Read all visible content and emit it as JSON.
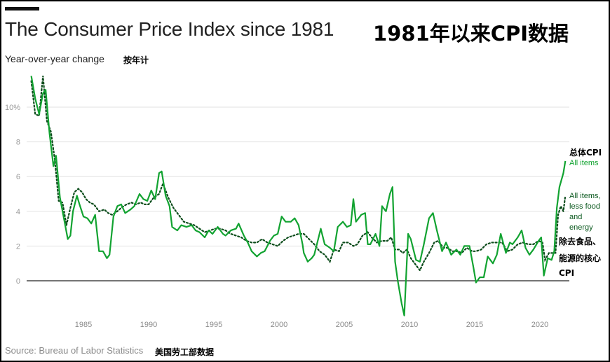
{
  "header": {
    "title_en": "The Consumer Price Index since 1981",
    "title_zh": "1981年以来CPI数据",
    "subtitle_en": "Year-over-year change",
    "subtitle_zh": "按年计"
  },
  "labels": {
    "all_items_zh": "总体CPI",
    "all_items_en": "All items",
    "core_en_lines": [
      "All items,",
      "less food",
      "and",
      "energy"
    ],
    "core_zh_line1": "除去食品、",
    "core_zh_line2": "能源的核心",
    "core_zh_line3": "CPI"
  },
  "footer": {
    "source_en": "Source: Bureau of Labor Statistics",
    "source_zh": "美国劳工部数据"
  },
  "colors": {
    "all_items": "#12a331",
    "core": "#0d4d1c",
    "grid": "#e2e2e2",
    "zero_line": "#222222"
  },
  "chart_data": {
    "type": "line",
    "title": "The Consumer Price Index since 1981",
    "subtitle": "Year-over-year change",
    "xlabel": "",
    "ylabel": "Year-over-year change (%)",
    "x_ticks": [
      1985,
      1990,
      1995,
      2000,
      2005,
      2010,
      2015,
      2020
    ],
    "y_ticks": [
      0,
      2,
      4,
      6,
      8,
      10
    ],
    "y_tick_labels": [
      "0",
      "2",
      "4",
      "6",
      "8",
      "10%"
    ],
    "xlim": [
      1981,
      2022
    ],
    "ylim": [
      -2.2,
      12
    ],
    "grid": true,
    "legend_position": "right, inline labels",
    "series": [
      {
        "name": "All items",
        "style": "solid",
        "x": [
          1981.0,
          1981.3,
          1981.6,
          1981.9,
          1982.1,
          1982.4,
          1982.7,
          1982.9,
          1983.2,
          1983.5,
          1983.8,
          1984.0,
          1984.2,
          1984.5,
          1984.7,
          1985.0,
          1985.3,
          1985.6,
          1985.9,
          1986.2,
          1986.5,
          1986.8,
          1987.0,
          1987.3,
          1987.6,
          1987.9,
          1988.2,
          1988.6,
          1988.9,
          1989.3,
          1989.6,
          1989.9,
          1990.2,
          1990.5,
          1990.8,
          1991.0,
          1991.3,
          1991.6,
          1991.8,
          1992.2,
          1992.5,
          1992.9,
          1993.3,
          1993.6,
          1993.9,
          1994.3,
          1994.6,
          1994.9,
          1995.3,
          1995.7,
          1995.9,
          1996.3,
          1996.7,
          1996.9,
          1997.3,
          1997.6,
          1997.9,
          1998.3,
          1998.6,
          1998.9,
          1999.3,
          1999.6,
          1999.9,
          2000.2,
          2000.5,
          2000.9,
          2001.2,
          2001.5,
          2001.8,
          2001.9,
          2002.2,
          2002.5,
          2002.7,
          2003.0,
          2003.2,
          2003.5,
          2003.9,
          2004.2,
          2004.5,
          2004.9,
          2005.2,
          2005.5,
          2005.7,
          2005.9,
          2006.3,
          2006.6,
          2006.8,
          2007.0,
          2007.4,
          2007.7,
          2007.9,
          2008.2,
          2008.5,
          2008.7,
          2008.9,
          2009.1,
          2009.4,
          2009.6,
          2009.9,
          2010.1,
          2010.5,
          2010.8,
          2011.1,
          2011.5,
          2011.8,
          2012.1,
          2012.5,
          2012.8,
          2013.2,
          2013.6,
          2013.9,
          2014.2,
          2014.6,
          2014.9,
          2015.1,
          2015.4,
          2015.7,
          2016.0,
          2016.4,
          2016.7,
          2017.0,
          2017.4,
          2017.7,
          2017.9,
          2018.3,
          2018.6,
          2018.9,
          2019.2,
          2019.5,
          2019.9,
          2020.1,
          2020.3,
          2020.6,
          2020.9,
          2021.1,
          2021.3,
          2021.5,
          2021.8,
          2021.95
        ],
        "values": [
          11.8,
          10.5,
          9.6,
          10.8,
          11.0,
          8.5,
          6.6,
          7.2,
          4.8,
          3.6,
          2.4,
          2.6,
          4.0,
          4.9,
          4.4,
          3.7,
          3.6,
          3.3,
          3.8,
          1.7,
          1.7,
          1.3,
          1.5,
          3.7,
          4.3,
          4.4,
          3.9,
          4.1,
          4.3,
          5.0,
          4.7,
          4.6,
          5.2,
          4.7,
          6.2,
          6.3,
          4.9,
          4.3,
          3.1,
          2.9,
          3.2,
          3.1,
          3.2,
          2.9,
          2.8,
          2.5,
          2.9,
          2.7,
          3.1,
          2.7,
          2.6,
          2.9,
          3.0,
          3.3,
          2.6,
          2.2,
          1.7,
          1.4,
          1.6,
          1.7,
          2.3,
          2.6,
          2.7,
          3.7,
          3.4,
          3.4,
          3.6,
          3.2,
          2.1,
          1.6,
          1.1,
          1.3,
          1.5,
          2.4,
          3.0,
          2.1,
          1.9,
          1.7,
          3.1,
          3.4,
          3.1,
          3.2,
          4.7,
          3.4,
          3.8,
          3.9,
          2.1,
          2.1,
          2.7,
          2.0,
          4.3,
          4.0,
          5.0,
          5.4,
          1.1,
          0.0,
          -1.3,
          -2.0,
          2.7,
          2.4,
          1.2,
          1.1,
          2.1,
          3.6,
          3.9,
          2.9,
          1.7,
          2.2,
          1.5,
          1.8,
          1.5,
          2.0,
          2.0,
          0.8,
          -0.1,
          0.2,
          0.2,
          1.4,
          1.0,
          1.5,
          2.7,
          1.6,
          2.2,
          2.1,
          2.5,
          2.9,
          1.9,
          1.5,
          1.8,
          2.3,
          2.5,
          0.3,
          1.3,
          1.2,
          1.7,
          4.2,
          5.4,
          6.2,
          6.9
        ]
      },
      {
        "name": "All items, less food and energy",
        "style": "dotted",
        "x": [
          1981.0,
          1981.3,
          1981.6,
          1981.9,
          1982.2,
          1982.5,
          1982.8,
          1983.1,
          1983.4,
          1983.7,
          1984.0,
          1984.3,
          1984.6,
          1984.9,
          1985.2,
          1985.5,
          1985.8,
          1986.2,
          1986.6,
          1986.9,
          1987.2,
          1987.6,
          1987.9,
          1988.3,
          1988.7,
          1989.0,
          1989.4,
          1989.7,
          1990.0,
          1990.4,
          1990.8,
          1991.1,
          1991.5,
          1991.9,
          1992.3,
          1992.7,
          1993.1,
          1993.5,
          1993.9,
          1994.3,
          1994.7,
          1995.1,
          1995.5,
          1995.9,
          1996.3,
          1996.7,
          1997.1,
          1997.5,
          1997.9,
          1998.3,
          1998.7,
          1999.1,
          1999.5,
          1999.9,
          2000.3,
          2000.7,
          2001.1,
          2001.5,
          2001.9,
          2002.3,
          2002.7,
          2003.1,
          2003.5,
          2003.9,
          2004.2,
          2004.6,
          2004.9,
          2005.3,
          2005.7,
          2006.0,
          2006.4,
          2006.8,
          2007.1,
          2007.5,
          2007.9,
          2008.3,
          2008.6,
          2008.9,
          2009.2,
          2009.5,
          2009.8,
          2010.1,
          2010.5,
          2010.8,
          2011.1,
          2011.5,
          2011.9,
          2012.2,
          2012.6,
          2012.9,
          2013.3,
          2013.7,
          2014.0,
          2014.4,
          2014.8,
          2015.1,
          2015.5,
          2015.9,
          2016.3,
          2016.7,
          2017.1,
          2017.5,
          2017.9,
          2018.3,
          2018.7,
          2019.1,
          2019.5,
          2019.9,
          2020.2,
          2020.4,
          2020.7,
          2020.9,
          2021.2,
          2021.4,
          2021.6,
          2021.8,
          2021.95
        ],
        "values": [
          11.5,
          9.6,
          9.5,
          11.8,
          9.2,
          8.6,
          7.0,
          4.6,
          4.5,
          3.2,
          4.2,
          5.1,
          5.3,
          5.1,
          4.7,
          4.5,
          4.4,
          4.0,
          4.1,
          3.9,
          3.8,
          4.0,
          4.2,
          4.4,
          4.5,
          4.4,
          4.5,
          4.4,
          4.4,
          4.8,
          5.0,
          5.6,
          4.8,
          4.2,
          3.8,
          3.4,
          3.3,
          3.2,
          3.0,
          2.8,
          2.9,
          3.0,
          3.0,
          2.9,
          2.7,
          2.6,
          2.5,
          2.3,
          2.2,
          2.2,
          2.4,
          2.2,
          2.1,
          2.0,
          2.3,
          2.5,
          2.6,
          2.7,
          2.7,
          2.4,
          2.1,
          1.7,
          1.5,
          1.1,
          1.8,
          1.7,
          2.2,
          2.2,
          2.0,
          2.1,
          2.6,
          2.8,
          2.5,
          2.2,
          2.3,
          2.3,
          2.5,
          1.8,
          1.8,
          1.6,
          1.8,
          1.3,
          0.9,
          0.6,
          1.1,
          1.6,
          2.2,
          2.3,
          1.9,
          1.9,
          1.7,
          1.7,
          1.6,
          1.9,
          1.7,
          1.7,
          1.8,
          2.1,
          2.2,
          2.2,
          2.2,
          1.7,
          1.8,
          2.1,
          2.2,
          2.1,
          2.1,
          2.3,
          2.2,
          1.2,
          1.6,
          1.6,
          1.6,
          3.8,
          4.3,
          4.0,
          4.9
        ]
      }
    ]
  }
}
